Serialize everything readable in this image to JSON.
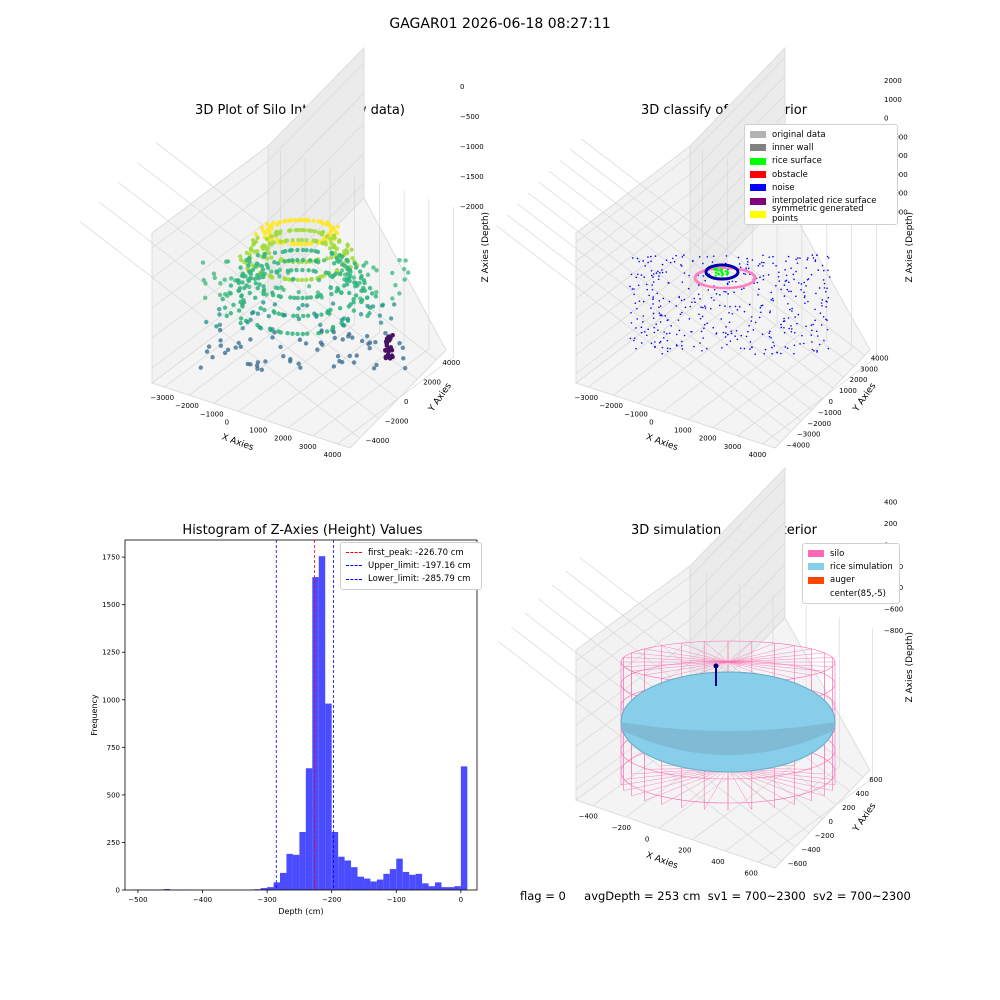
{
  "suptitle": "GAGAR01 2026-06-18 08:27:11",
  "panels": {
    "raw": {
      "title": "3D Plot of Silo Interior(row data)",
      "xlabel": "X Axies",
      "ylabel": "Y Axies",
      "zlabel": "Z Axies (Depth)",
      "xticks": [
        "−3000",
        "−2000",
        "−1000",
        "0",
        "1000",
        "2000",
        "3000",
        "4000"
      ],
      "yticks": [
        "−4000",
        "−2000",
        "0",
        "2000",
        "4000"
      ],
      "zticks": [
        "0",
        "−500",
        "−1000",
        "−1500",
        "−2000"
      ]
    },
    "classify": {
      "title": "3D classify of Silo Interior",
      "xlabel": "X Axies",
      "ylabel": "Y Axies",
      "zlabel": "Z Axies (Depth)",
      "xticks": [
        "−3000",
        "−2000",
        "−1000",
        "0",
        "1000",
        "2000",
        "3000",
        "4000"
      ],
      "yticks": [
        "−4000",
        "−3000",
        "−2000",
        "−1000",
        "0",
        "1000",
        "2000",
        "3000",
        "4000"
      ],
      "zticks": [
        "2000",
        "1000",
        "0",
        "−1000",
        "−2000",
        "−3000",
        "−4000",
        "−5000"
      ],
      "legend": [
        {
          "label": "original data",
          "color": "#b3b3b3"
        },
        {
          "label": "inner wall",
          "color": "#808080"
        },
        {
          "label": "rice surface",
          "color": "#00ff00"
        },
        {
          "label": "obstacle",
          "color": "#ff0000"
        },
        {
          "label": "noise",
          "color": "#0000ff"
        },
        {
          "label": "interpolated rice surface",
          "color": "#800080"
        },
        {
          "label": "symmetric generated points",
          "color": "#ffff00"
        }
      ]
    },
    "histogram": {
      "title": "Histogram of Z-Axies (Height) Values",
      "xlabel": "Depth (cm)",
      "ylabel": "Frequency",
      "legend": [
        {
          "label": "first_peak: -226.70 cm",
          "color": "#ff0000"
        },
        {
          "label": "Upper_limit: -197.16 cm",
          "color": "#0000ff"
        },
        {
          "label": "Lower_limit: -285.79 cm",
          "color": "#0000ff"
        }
      ]
    },
    "simulation": {
      "title": "3D simulation of Silo Interior",
      "xlabel": "X Axies",
      "ylabel": "Y Axies",
      "zlabel": "Z Axies (Depth)",
      "xticks": [
        "−400",
        "−200",
        "0",
        "200",
        "400",
        "600"
      ],
      "yticks": [
        "−600",
        "−400",
        "−200",
        "0",
        "200",
        "400",
        "600"
      ],
      "zticks": [
        "400",
        "200",
        "0",
        "−200",
        "−400",
        "−600",
        "−800"
      ],
      "legend": [
        {
          "label": "silo",
          "color": "#ff69b4"
        },
        {
          "label": "rice simulation",
          "color": "#87ceeb"
        },
        {
          "label": "auger",
          "color": "#ff4500"
        },
        {
          "label": "center(85,-5)",
          "color": ""
        }
      ]
    }
  },
  "status": {
    "flag": "flag = 0",
    "avg": "avgDepth = 253 cm",
    "sv1": "sv1 = 700~2300",
    "sv2": "sv2 = 700~2300"
  },
  "chart_data": [
    {
      "type": "scatter",
      "title": "3D Plot of Silo Interior(row data)",
      "xlabel": "X Axies",
      "ylabel": "Y Axies",
      "zlabel": "Z Axies (Depth)",
      "xlim": [
        -3500,
        4500
      ],
      "ylim": [
        -4500,
        4500
      ],
      "zlim": [
        -2300,
        100
      ],
      "colormap": "viridis"
    },
    {
      "type": "scatter",
      "title": "3D classify of Silo Interior",
      "xlabel": "X Axies",
      "ylabel": "Y Axies",
      "zlabel": "Z Axies (Depth)",
      "xlim": [
        -3500,
        4500
      ],
      "ylim": [
        -4500,
        4500
      ],
      "zlim": [
        -5500,
        2500
      ],
      "series": [
        {
          "name": "original data",
          "color": "#b3b3b3"
        },
        {
          "name": "inner wall",
          "color": "#808080"
        },
        {
          "name": "rice surface",
          "color": "#00ff00"
        },
        {
          "name": "obstacle",
          "color": "#ff0000"
        },
        {
          "name": "noise",
          "color": "#0000ff"
        },
        {
          "name": "interpolated rice surface",
          "color": "#800080"
        },
        {
          "name": "symmetric generated points",
          "color": "#ffff00"
        }
      ]
    },
    {
      "type": "bar",
      "title": "Histogram of Z-Axies (Height) Values",
      "xlabel": "Depth (cm)",
      "ylabel": "Frequency",
      "xlim": [
        -520,
        25
      ],
      "ylim": [
        0,
        1840
      ],
      "xticks": [
        -500,
        -400,
        -300,
        -200,
        -100,
        0
      ],
      "yticks": [
        0,
        250,
        500,
        750,
        1000,
        1250,
        1500,
        1750
      ],
      "bin_width": 10,
      "bin_starts": [
        -510,
        -500,
        -490,
        -480,
        -470,
        -460,
        -450,
        -440,
        -430,
        -420,
        -410,
        -400,
        -390,
        -380,
        -370,
        -360,
        -350,
        -340,
        -330,
        -320,
        -310,
        -300,
        -290,
        -280,
        -270,
        -260,
        -250,
        -240,
        -230,
        -220,
        -210,
        -200,
        -190,
        -180,
        -170,
        -160,
        -150,
        -140,
        -130,
        -120,
        -110,
        -100,
        -90,
        -80,
        -70,
        -60,
        -50,
        -40,
        -30,
        -20,
        -10,
        0
      ],
      "values": [
        2,
        2,
        2,
        2,
        2,
        5,
        2,
        2,
        2,
        1,
        1,
        1,
        1,
        1,
        1,
        1,
        1,
        1,
        2,
        4,
        10,
        15,
        40,
        90,
        190,
        185,
        305,
        640,
        1645,
        1755,
        980,
        305,
        175,
        155,
        120,
        70,
        60,
        45,
        55,
        85,
        110,
        165,
        95,
        80,
        85,
        35,
        20,
        40,
        15,
        15,
        20,
        650
      ],
      "lines": [
        {
          "name": "first_peak: -226.70 cm",
          "x": -226.7,
          "color": "#ff0000"
        },
        {
          "name": "Upper_limit: -197.16 cm",
          "x": -197.16,
          "color": "#0000ff"
        },
        {
          "name": "Lower_limit: -285.79 cm",
          "x": -285.79,
          "color": "#0000ff"
        }
      ],
      "grid": false,
      "legend_position": "top-right",
      "bar_color": "#4b4bff"
    },
    {
      "type": "scatter",
      "title": "3D simulation of Silo Interior",
      "xlabel": "X Axies",
      "ylabel": "Y Axies",
      "zlabel": "Z Axies (Depth)",
      "xlim": [
        -550,
        750
      ],
      "ylim": [
        -700,
        700
      ],
      "zlim": [
        -900,
        450
      ],
      "series": [
        {
          "name": "silo",
          "color": "#ff69b4"
        },
        {
          "name": "rice simulation",
          "color": "#87ceeb"
        },
        {
          "name": "auger",
          "color": "#ff4500"
        },
        {
          "name": "center(85,-5)",
          "color": ""
        }
      ]
    }
  ]
}
